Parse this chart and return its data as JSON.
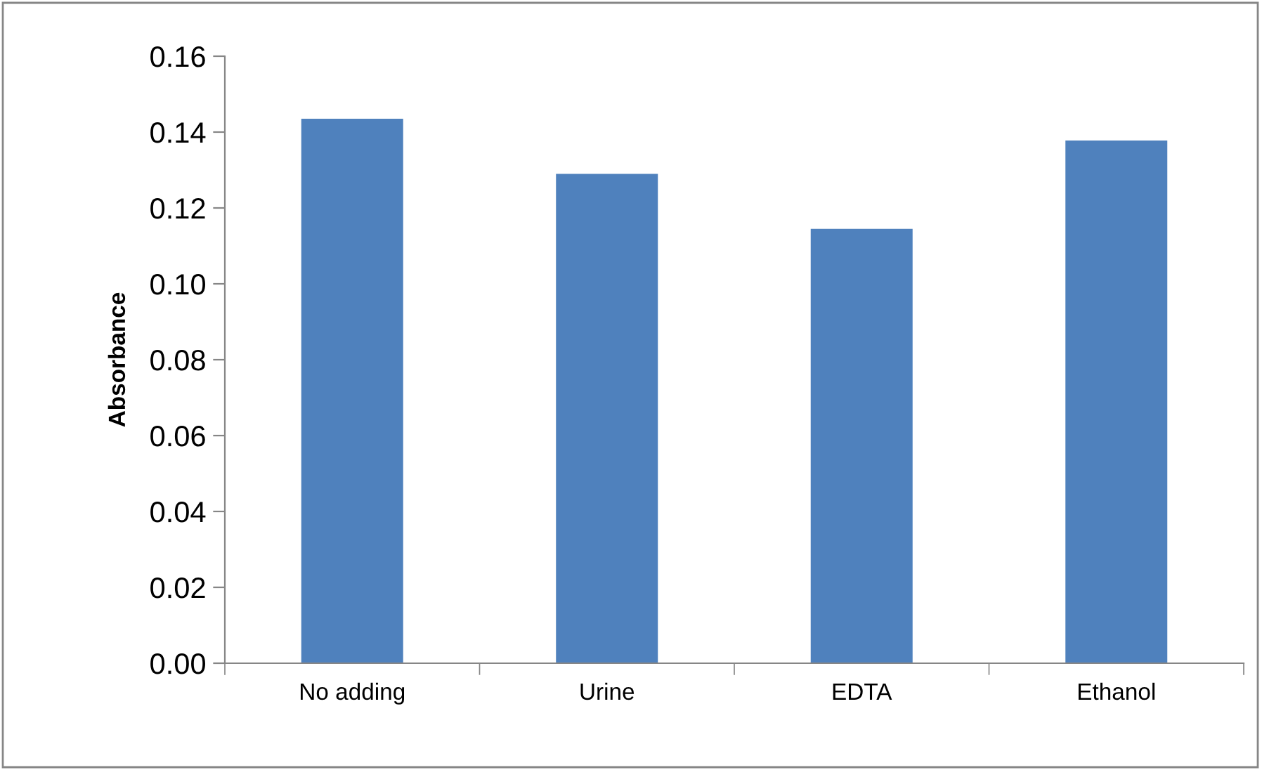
{
  "chart_data": {
    "type": "bar",
    "ylabel": "Absorbance",
    "categories": [
      "No adding",
      "Urine",
      "EDTA",
      "Ethanol"
    ],
    "values": [
      0.1435,
      0.129,
      0.1145,
      0.1378
    ],
    "color": "#4f81bd",
    "ylim": [
      0,
      0.16
    ],
    "yticks": [
      {
        "value": 0,
        "label": "0.00"
      },
      {
        "value": 0.02,
        "label": "0.02"
      },
      {
        "value": 0.04,
        "label": "0.04"
      },
      {
        "value": 0.06,
        "label": "0.06"
      },
      {
        "value": 0.08,
        "label": "0.08"
      },
      {
        "value": 0.1,
        "label": "0.10"
      },
      {
        "value": 0.12,
        "label": "0.12"
      },
      {
        "value": 0.14,
        "label": "0.14"
      },
      {
        "value": 0.16,
        "label": "0.16"
      }
    ],
    "grid": false,
    "legend": false
  }
}
